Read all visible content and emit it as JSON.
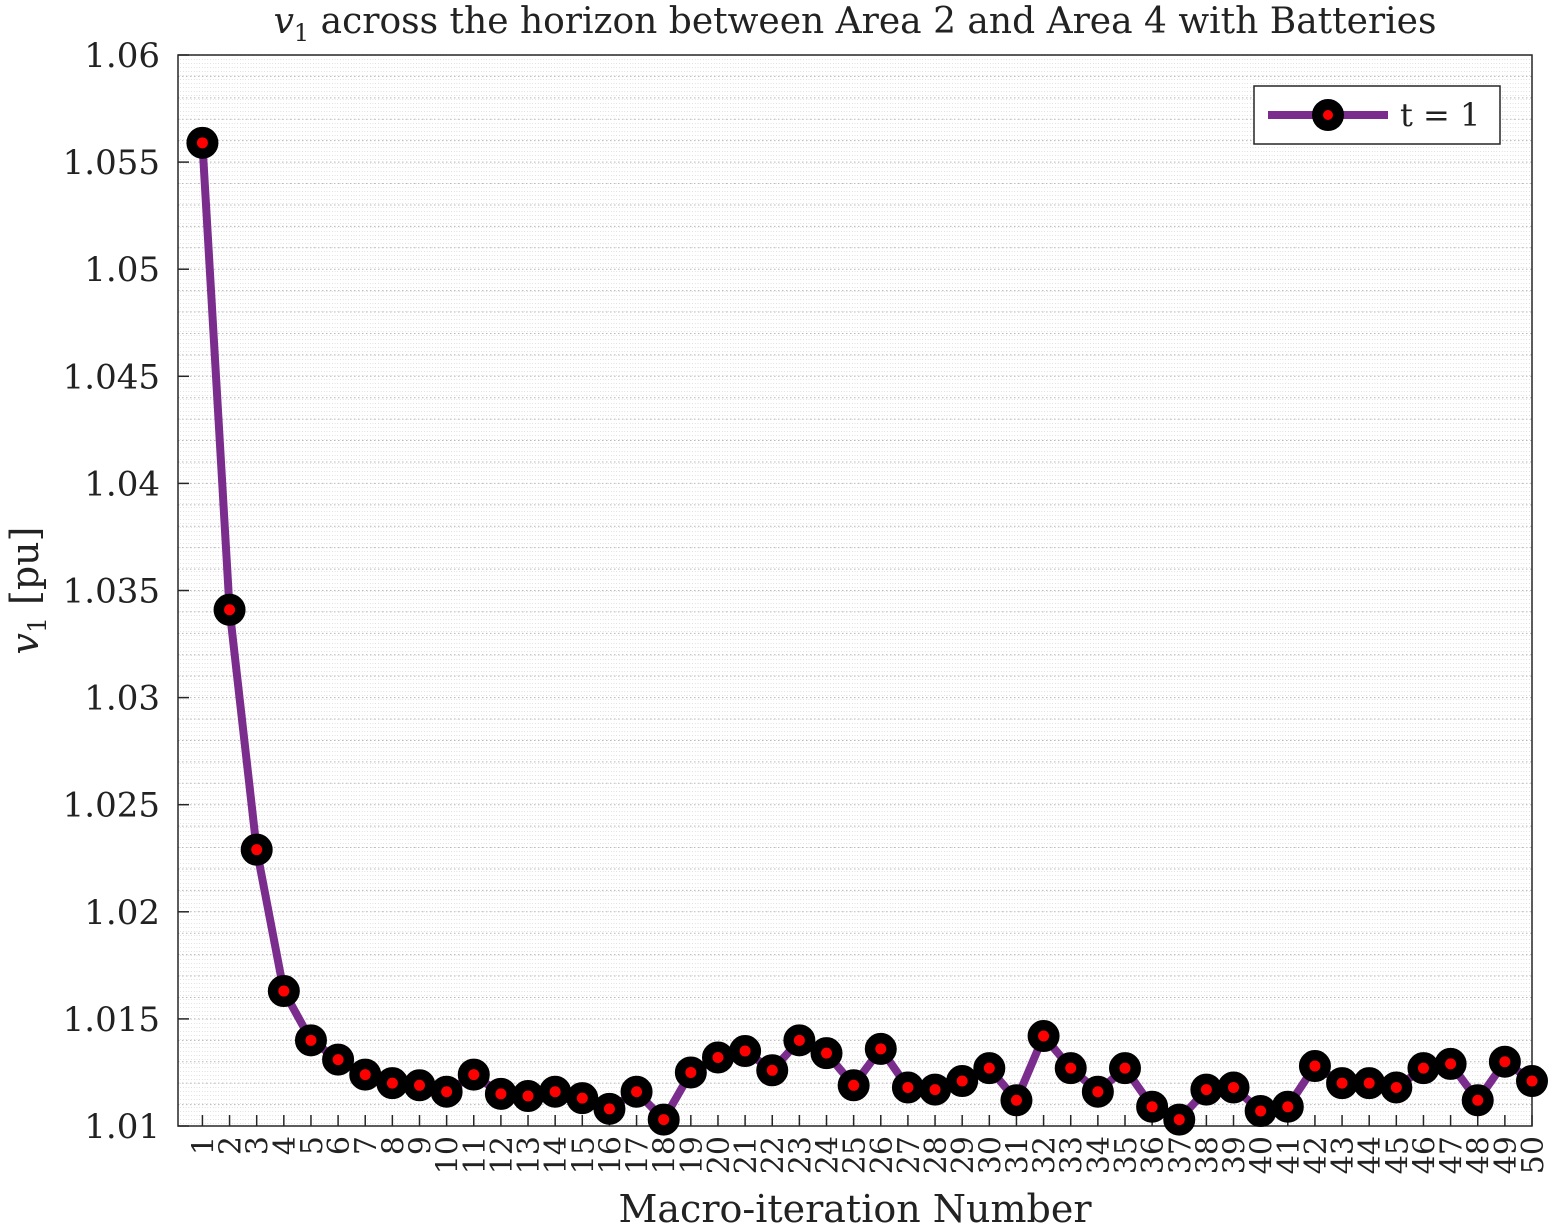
{
  "chart_data": {
    "type": "line",
    "title_var": "v",
    "title_sub": "1",
    "title_rest": " across the horizon between Area 2 and Area 4 with Batteries",
    "xlabel": "Macro-iteration Number",
    "ylabel_var": "v",
    "ylabel_sub": "1",
    "ylabel_unit": " [pu]",
    "ylim": [
      1.01,
      1.06
    ],
    "xlim": [
      0.1,
      50
    ],
    "y_ticks": [
      "1.01",
      "1.015",
      "1.02",
      "1.025",
      "1.03",
      "1.035",
      "1.04",
      "1.045",
      "1.05",
      "1.055",
      "1.06"
    ],
    "y_tick_values": [
      1.01,
      1.015,
      1.02,
      1.025,
      1.03,
      1.035,
      1.04,
      1.045,
      1.05,
      1.055,
      1.06
    ],
    "x_tick_labels": [
      "1",
      "2",
      "3",
      "4",
      "5",
      "6",
      "7",
      "8",
      "9",
      "10",
      "11",
      "12",
      "13",
      "14",
      "15",
      "16",
      "17",
      "18",
      "19",
      "20",
      "21",
      "22",
      "23",
      "24",
      "25",
      "26",
      "27",
      "28",
      "29",
      "30",
      "31",
      "32",
      "33",
      "34",
      "35",
      "36",
      "37",
      "38",
      "39",
      "40",
      "41",
      "42",
      "43",
      "44",
      "45",
      "46",
      "47",
      "48",
      "49",
      "50"
    ],
    "grid": "on (major and minor, dotted)",
    "legend_position": "top-right",
    "series": [
      {
        "name": "t = 1",
        "line_color": "#7b2d8e",
        "marker_edge_color": "#000000",
        "marker_face_color": "#ff0000",
        "x": [
          1,
          2,
          3,
          4,
          5,
          6,
          7,
          8,
          9,
          10,
          11,
          12,
          13,
          14,
          15,
          16,
          17,
          18,
          19,
          20,
          21,
          22,
          23,
          24,
          25,
          26,
          27,
          28,
          29,
          30,
          31,
          32,
          33,
          34,
          35,
          36,
          37,
          38,
          39,
          40,
          41,
          42,
          43,
          44,
          45,
          46,
          47,
          48,
          49,
          50
        ],
        "values": [
          1.0559,
          1.0341,
          1.0229,
          1.0163,
          1.014,
          1.0131,
          1.0124,
          1.012,
          1.0119,
          1.0116,
          1.0124,
          1.0115,
          1.0114,
          1.0116,
          1.0113,
          1.0108,
          1.0116,
          1.0103,
          1.0125,
          1.0132,
          1.0135,
          1.0126,
          1.014,
          1.0134,
          1.0119,
          1.0136,
          1.0118,
          1.0117,
          1.0121,
          1.0127,
          1.0112,
          1.0142,
          1.0127,
          1.0116,
          1.0127,
          1.0109,
          1.0103,
          1.0117,
          1.0118,
          1.0107,
          1.0109,
          1.0128,
          1.012,
          1.012,
          1.0118,
          1.0127,
          1.0129,
          1.0112,
          1.013,
          1.0121
        ]
      }
    ]
  }
}
